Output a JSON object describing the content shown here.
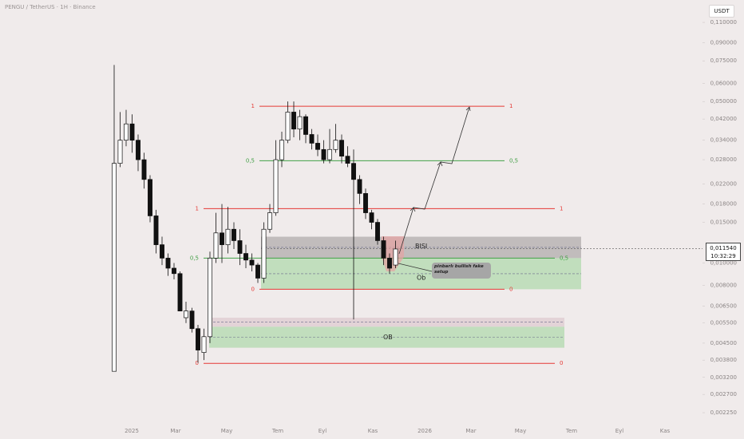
{
  "chart_data": {
    "type": "candlestick",
    "title": "PENGU / TetherUS · 1H · Binance",
    "currency": "USDT",
    "log_scale": true,
    "ylim": [
      0.00203,
      0.1375
    ],
    "yticks": [
      {
        "value": 0.11,
        "label": "0,110000"
      },
      {
        "value": 0.09,
        "label": "0,090000"
      },
      {
        "value": 0.075,
        "label": "0,075000"
      },
      {
        "value": 0.06,
        "label": "0,060000"
      },
      {
        "value": 0.05,
        "label": "0,050000"
      },
      {
        "value": 0.042,
        "label": "0,042000"
      },
      {
        "value": 0.034,
        "label": "0,034000"
      },
      {
        "value": 0.028,
        "label": "0,028000"
      },
      {
        "value": 0.022,
        "label": "0,022000"
      },
      {
        "value": 0.018,
        "label": "0,018000"
      },
      {
        "value": 0.015,
        "label": "0,015000"
      },
      {
        "value": 0.01,
        "label": "0,010000"
      },
      {
        "value": 0.008,
        "label": "0,008000"
      },
      {
        "value": 0.0065,
        "label": "0,006500"
      },
      {
        "value": 0.0055,
        "label": "0,005500"
      },
      {
        "value": 0.0045,
        "label": "0,004500"
      },
      {
        "value": 0.0038,
        "label": "0,003800"
      },
      {
        "value": 0.0032,
        "label": "0,003200"
      },
      {
        "value": 0.0027,
        "label": "0,002700"
      },
      {
        "value": 0.00225,
        "label": "0,002250"
      }
    ],
    "x_labels": [
      "2025",
      "Mar",
      "May",
      "Tem",
      "Eyl",
      "Kas",
      "2026",
      "Mar",
      "May",
      "Tem",
      "Eyl",
      "Kas"
    ],
    "open": [
      0.0034,
      0.027,
      0.034,
      0.04,
      0.034,
      0.028,
      0.023,
      0.016,
      0.012,
      0.0105,
      0.0095,
      0.009,
      0.0058,
      0.0062,
      0.0052,
      0.0041,
      0.0048,
      0.0105,
      0.0135,
      0.012,
      0.014,
      0.0125,
      0.011,
      0.0103,
      0.0098,
      0.0086,
      0.014,
      0.0165,
      0.028,
      0.034,
      0.045,
      0.038,
      0.043,
      0.036,
      0.033,
      0.031,
      0.028,
      0.031,
      0.034,
      0.029,
      0.027,
      0.023,
      0.02,
      0.0165,
      0.015,
      0.0125,
      0.0105,
      0.0098
    ],
    "high": [
      0.072,
      0.045,
      0.046,
      0.044,
      0.036,
      0.03,
      0.024,
      0.017,
      0.013,
      0.011,
      0.01,
      0.0092,
      0.0068,
      0.0064,
      0.0054,
      0.0052,
      0.0112,
      0.0165,
      0.018,
      0.0175,
      0.015,
      0.014,
      0.012,
      0.011,
      0.01,
      0.015,
      0.018,
      0.034,
      0.037,
      0.05,
      0.05,
      0.046,
      0.044,
      0.038,
      0.036,
      0.034,
      0.038,
      0.04,
      0.036,
      0.032,
      0.031,
      0.024,
      0.021,
      0.017,
      0.0155,
      0.013,
      0.011,
      0.0125
    ],
    "low": [
      0.0034,
      0.026,
      0.032,
      0.03,
      0.025,
      0.021,
      0.015,
      0.011,
      0.0098,
      0.0088,
      0.0085,
      0.0064,
      0.0055,
      0.005,
      0.0037,
      0.0038,
      0.0045,
      0.01,
      0.01,
      0.011,
      0.0115,
      0.0098,
      0.0095,
      0.0092,
      0.0082,
      0.0082,
      0.0135,
      0.016,
      0.026,
      0.033,
      0.035,
      0.034,
      0.033,
      0.031,
      0.029,
      0.027,
      0.027,
      0.03,
      0.027,
      0.026,
      0.0057,
      0.018,
      0.0155,
      0.014,
      0.012,
      0.0098,
      0.009,
      0.0095
    ],
    "close": [
      0.027,
      0.034,
      0.04,
      0.034,
      0.028,
      0.023,
      0.016,
      0.012,
      0.0105,
      0.0095,
      0.009,
      0.0062,
      0.0062,
      0.0052,
      0.0042,
      0.0048,
      0.0105,
      0.0135,
      0.012,
      0.014,
      0.0125,
      0.011,
      0.0103,
      0.0098,
      0.0086,
      0.014,
      0.0165,
      0.028,
      0.034,
      0.045,
      0.038,
      0.043,
      0.036,
      0.033,
      0.031,
      0.028,
      0.031,
      0.034,
      0.029,
      0.027,
      0.023,
      0.02,
      0.0165,
      0.015,
      0.0125,
      0.0105,
      0.0095,
      0.0115
    ],
    "levels": [
      {
        "price": 0.0477,
        "label": "1",
        "color": "#e53935"
      },
      {
        "price": 0.0277,
        "label": "0,5",
        "color": "#43a047"
      },
      {
        "price": 0.0172,
        "label": "1",
        "color": "#e53935"
      },
      {
        "price": 0.0105,
        "label": "0,5",
        "color": "#43a047"
      },
      {
        "price": 0.0077,
        "label": "0",
        "color": "#e53935"
      },
      {
        "price": 0.00368,
        "label": "0",
        "color": "#e53935"
      }
    ],
    "zones": [
      {
        "label": "BISI",
        "low": 0.0105,
        "high": 0.013,
        "color": "#b8b4b4"
      },
      {
        "label": "Ob",
        "low": 0.0077,
        "high": 0.0105,
        "color": "#b9dcb5"
      },
      {
        "low": 0.0053,
        "high": 0.0058,
        "color": "#e0cfd3"
      },
      {
        "label": "OB",
        "low": 0.0043,
        "high": 0.0053,
        "color": "#b9dcb5"
      }
    ],
    "annotation": "pinbarlı bullish fake setup",
    "last_price": {
      "value": 0.01154,
      "label": "0,011540"
    },
    "countdown": "10:32:29"
  }
}
